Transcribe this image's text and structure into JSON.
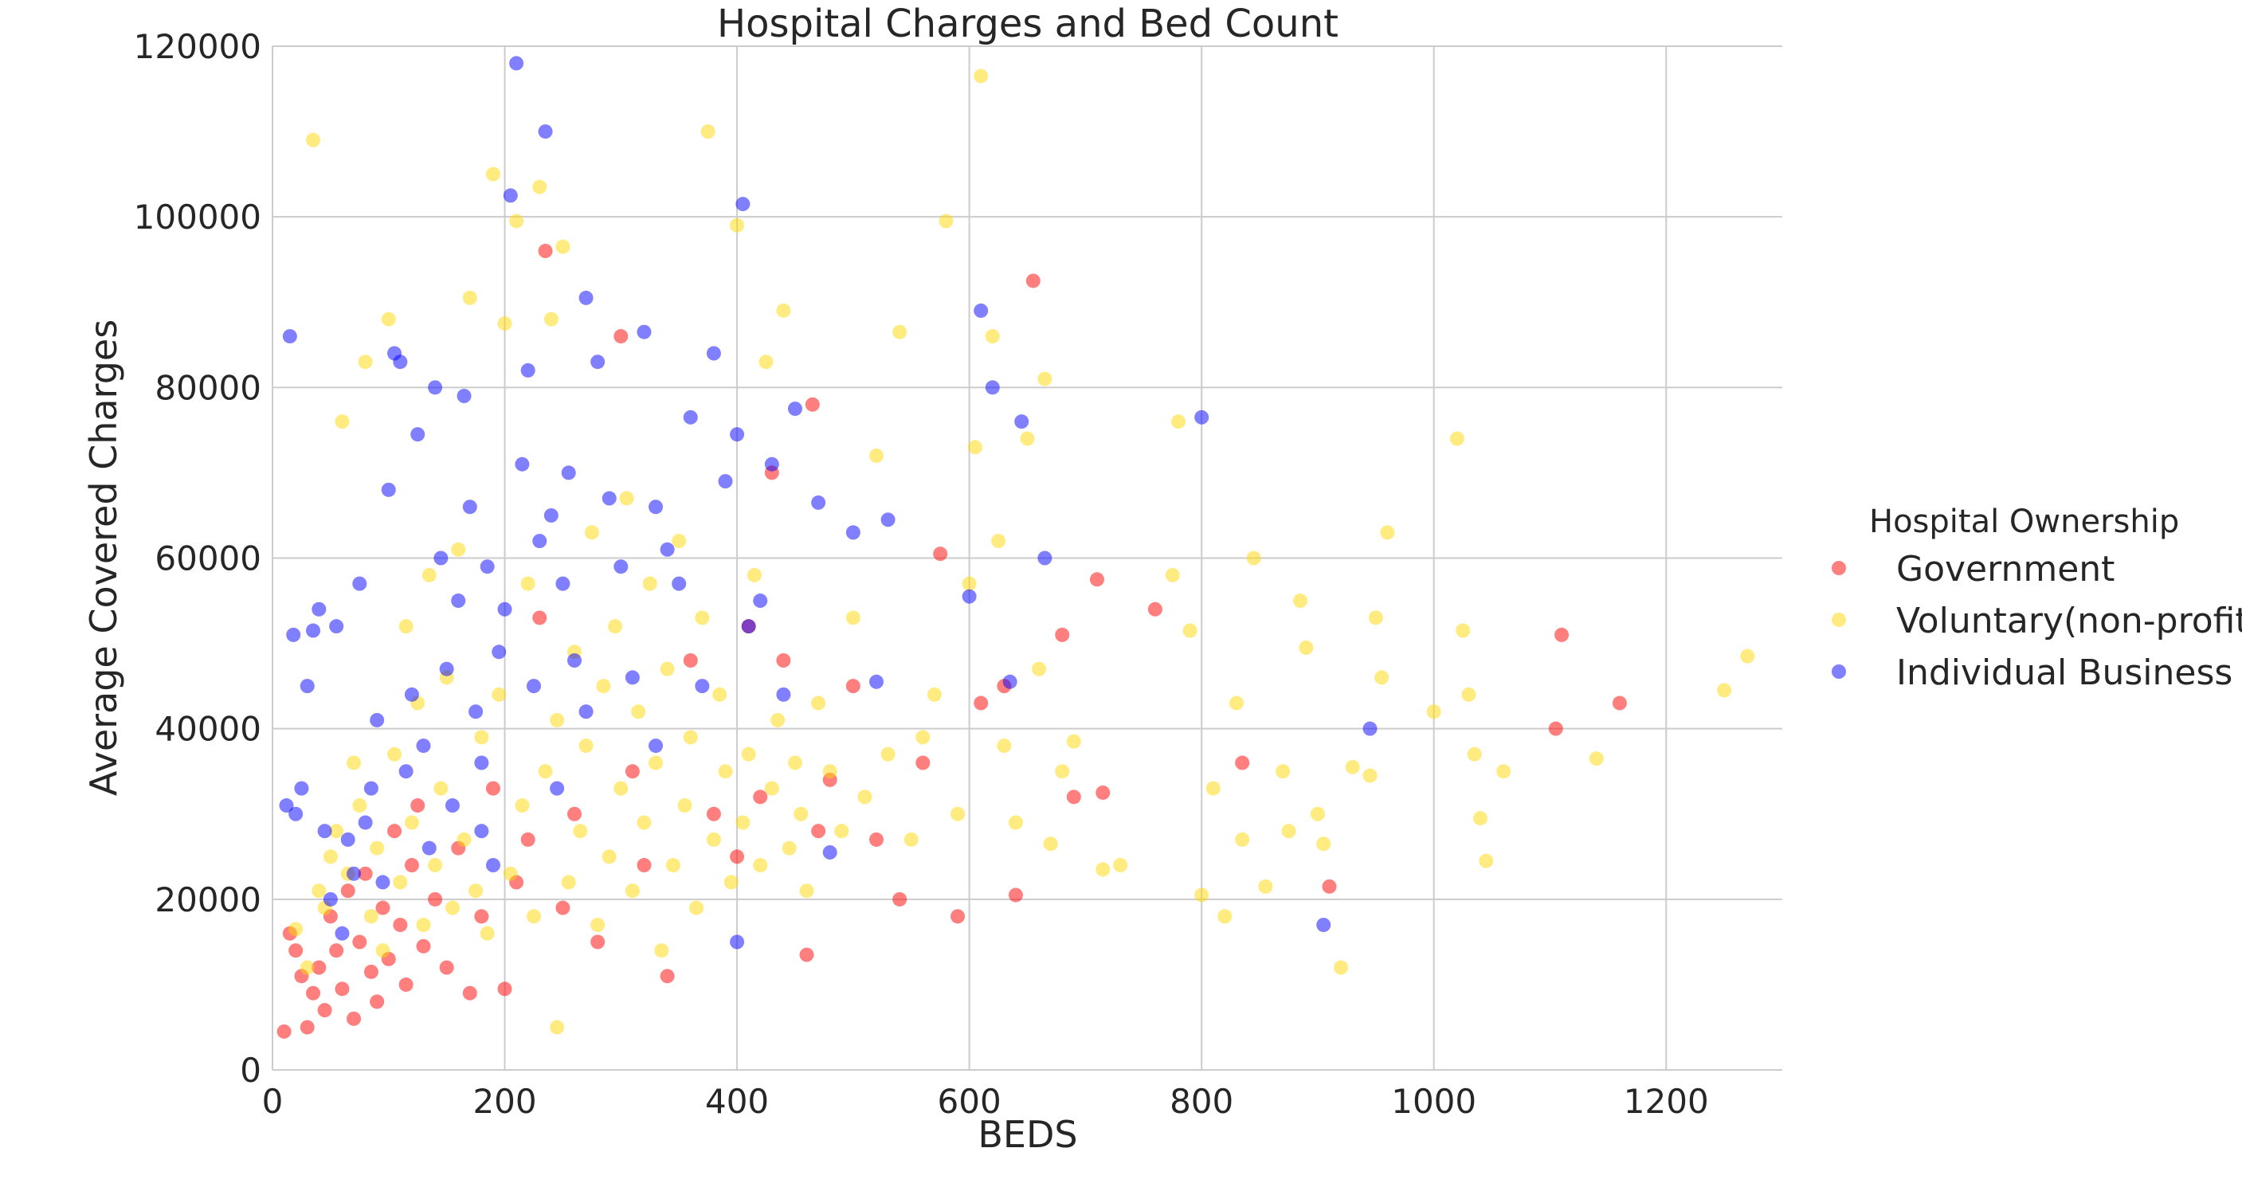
{
  "chart_data": {
    "type": "scatter",
    "title": "Hospital Charges and Bed Count",
    "xlabel": "BEDS",
    "ylabel": "Average Covered Charges",
    "xlim": [
      0,
      1300
    ],
    "ylim": [
      0,
      120000
    ],
    "xticks": [
      0,
      200,
      400,
      600,
      800,
      1000,
      1200
    ],
    "yticks": [
      0,
      20000,
      40000,
      60000,
      80000,
      100000,
      120000
    ],
    "xtick_labels": [
      "0",
      "200",
      "400",
      "600",
      "800",
      "1000",
      "1200"
    ],
    "ytick_labels": [
      "0",
      "20000",
      "40000",
      "60000",
      "80000",
      "100000",
      "120000"
    ],
    "grid": true,
    "legend": {
      "title": "Hospital Ownership",
      "placement": "right"
    },
    "series": [
      {
        "name": "Government",
        "color": "#ff0000",
        "points": [
          [
            10,
            4500
          ],
          [
            15,
            16000
          ],
          [
            20,
            14000
          ],
          [
            25,
            11000
          ],
          [
            30,
            5000
          ],
          [
            35,
            9000
          ],
          [
            40,
            12000
          ],
          [
            45,
            7000
          ],
          [
            50,
            18000
          ],
          [
            55,
            14000
          ],
          [
            60,
            9500
          ],
          [
            65,
            21000
          ],
          [
            70,
            6000
          ],
          [
            75,
            15000
          ],
          [
            80,
            23000
          ],
          [
            85,
            11500
          ],
          [
            90,
            8000
          ],
          [
            95,
            19000
          ],
          [
            100,
            13000
          ],
          [
            105,
            28000
          ],
          [
            110,
            17000
          ],
          [
            115,
            10000
          ],
          [
            120,
            24000
          ],
          [
            125,
            31000
          ],
          [
            130,
            14500
          ],
          [
            140,
            20000
          ],
          [
            150,
            12000
          ],
          [
            160,
            26000
          ],
          [
            170,
            9000
          ],
          [
            180,
            18000
          ],
          [
            190,
            33000
          ],
          [
            200,
            9500
          ],
          [
            210,
            22000
          ],
          [
            220,
            27000
          ],
          [
            230,
            53000
          ],
          [
            235,
            96000
          ],
          [
            250,
            19000
          ],
          [
            260,
            30000
          ],
          [
            280,
            15000
          ],
          [
            300,
            86000
          ],
          [
            310,
            35000
          ],
          [
            320,
            24000
          ],
          [
            340,
            11000
          ],
          [
            360,
            48000
          ],
          [
            380,
            30000
          ],
          [
            400,
            25000
          ],
          [
            410,
            52000
          ],
          [
            420,
            32000
          ],
          [
            430,
            70000
          ],
          [
            440,
            48000
          ],
          [
            460,
            13500
          ],
          [
            465,
            78000
          ],
          [
            470,
            28000
          ],
          [
            480,
            34000
          ],
          [
            500,
            45000
          ],
          [
            520,
            27000
          ],
          [
            540,
            20000
          ],
          [
            560,
            36000
          ],
          [
            575,
            60500
          ],
          [
            590,
            18000
          ],
          [
            610,
            43000
          ],
          [
            630,
            45000
          ],
          [
            640,
            20500
          ],
          [
            655,
            92500
          ],
          [
            680,
            51000
          ],
          [
            690,
            32000
          ],
          [
            710,
            57500
          ],
          [
            715,
            32500
          ],
          [
            760,
            54000
          ],
          [
            835,
            36000
          ],
          [
            910,
            21500
          ],
          [
            1105,
            40000
          ],
          [
            1110,
            51000
          ],
          [
            1160,
            43000
          ]
        ]
      },
      {
        "name": "Voluntary(non-profit)",
        "color": "#ffd700",
        "points": [
          [
            20,
            16500
          ],
          [
            30,
            12000
          ],
          [
            35,
            109000
          ],
          [
            40,
            21000
          ],
          [
            45,
            19000
          ],
          [
            50,
            25000
          ],
          [
            55,
            28000
          ],
          [
            60,
            76000
          ],
          [
            65,
            23000
          ],
          [
            70,
            36000
          ],
          [
            75,
            31000
          ],
          [
            80,
            83000
          ],
          [
            85,
            18000
          ],
          [
            90,
            26000
          ],
          [
            95,
            14000
          ],
          [
            100,
            88000
          ],
          [
            105,
            37000
          ],
          [
            110,
            22000
          ],
          [
            115,
            52000
          ],
          [
            120,
            29000
          ],
          [
            125,
            43000
          ],
          [
            130,
            17000
          ],
          [
            135,
            58000
          ],
          [
            140,
            24000
          ],
          [
            145,
            33000
          ],
          [
            150,
            46000
          ],
          [
            155,
            19000
          ],
          [
            160,
            61000
          ],
          [
            165,
            27000
          ],
          [
            170,
            90500
          ],
          [
            175,
            21000
          ],
          [
            180,
            39000
          ],
          [
            185,
            16000
          ],
          [
            190,
            105000
          ],
          [
            195,
            44000
          ],
          [
            200,
            87500
          ],
          [
            205,
            23000
          ],
          [
            210,
            99500
          ],
          [
            215,
            31000
          ],
          [
            220,
            57000
          ],
          [
            225,
            18000
          ],
          [
            230,
            103500
          ],
          [
            235,
            35000
          ],
          [
            240,
            88000
          ],
          [
            245,
            41000
          ],
          [
            250,
            96500
          ],
          [
            255,
            22000
          ],
          [
            260,
            49000
          ],
          [
            265,
            28000
          ],
          [
            270,
            38000
          ],
          [
            275,
            63000
          ],
          [
            280,
            17000
          ],
          [
            285,
            45000
          ],
          [
            290,
            25000
          ],
          [
            295,
            52000
          ],
          [
            300,
            33000
          ],
          [
            305,
            67000
          ],
          [
            310,
            21000
          ],
          [
            315,
            42000
          ],
          [
            320,
            29000
          ],
          [
            325,
            57000
          ],
          [
            330,
            36000
          ],
          [
            335,
            14000
          ],
          [
            340,
            47000
          ],
          [
            345,
            24000
          ],
          [
            350,
            62000
          ],
          [
            355,
            31000
          ],
          [
            360,
            39000
          ],
          [
            365,
            19000
          ],
          [
            370,
            53000
          ],
          [
            375,
            110000
          ],
          [
            380,
            27000
          ],
          [
            385,
            44000
          ],
          [
            390,
            35000
          ],
          [
            395,
            22000
          ],
          [
            400,
            99000
          ],
          [
            405,
            29000
          ],
          [
            410,
            37000
          ],
          [
            415,
            58000
          ],
          [
            420,
            24000
          ],
          [
            425,
            83000
          ],
          [
            430,
            33000
          ],
          [
            435,
            41000
          ],
          [
            440,
            89000
          ],
          [
            445,
            26000
          ],
          [
            450,
            36000
          ],
          [
            455,
            30000
          ],
          [
            460,
            21000
          ],
          [
            470,
            43000
          ],
          [
            480,
            35000
          ],
          [
            490,
            28000
          ],
          [
            500,
            53000
          ],
          [
            510,
            32000
          ],
          [
            520,
            72000
          ],
          [
            530,
            37000
          ],
          [
            540,
            86500
          ],
          [
            550,
            27000
          ],
          [
            560,
            39000
          ],
          [
            570,
            44000
          ],
          [
            580,
            99500
          ],
          [
            590,
            30000
          ],
          [
            600,
            57000
          ],
          [
            605,
            73000
          ],
          [
            610,
            116500
          ],
          [
            620,
            86000
          ],
          [
            625,
            62000
          ],
          [
            630,
            38000
          ],
          [
            640,
            29000
          ],
          [
            650,
            74000
          ],
          [
            660,
            47000
          ],
          [
            665,
            81000
          ],
          [
            670,
            26500
          ],
          [
            680,
            35000
          ],
          [
            690,
            38500
          ],
          [
            715,
            23500
          ],
          [
            730,
            24000
          ],
          [
            775,
            58000
          ],
          [
            780,
            76000
          ],
          [
            790,
            51500
          ],
          [
            800,
            20500
          ],
          [
            810,
            33000
          ],
          [
            820,
            18000
          ],
          [
            830,
            43000
          ],
          [
            835,
            27000
          ],
          [
            845,
            60000
          ],
          [
            855,
            21500
          ],
          [
            870,
            35000
          ],
          [
            875,
            28000
          ],
          [
            885,
            55000
          ],
          [
            890,
            49500
          ],
          [
            900,
            30000
          ],
          [
            905,
            26500
          ],
          [
            920,
            12000
          ],
          [
            930,
            35500
          ],
          [
            945,
            34500
          ],
          [
            950,
            53000
          ],
          [
            955,
            46000
          ],
          [
            960,
            63000
          ],
          [
            1000,
            42000
          ],
          [
            1020,
            74000
          ],
          [
            1025,
            51500
          ],
          [
            1030,
            44000
          ],
          [
            1035,
            37000
          ],
          [
            1040,
            29500
          ],
          [
            1045,
            24500
          ],
          [
            1060,
            35000
          ],
          [
            1140,
            36500
          ],
          [
            1250,
            44500
          ],
          [
            1270,
            48500
          ],
          [
            245,
            5000
          ]
        ]
      },
      {
        "name": "Individual Business",
        "color": "#0000ff",
        "points": [
          [
            12,
            31000
          ],
          [
            15,
            86000
          ],
          [
            18,
            51000
          ],
          [
            20,
            30000
          ],
          [
            25,
            33000
          ],
          [
            30,
            45000
          ],
          [
            35,
            51500
          ],
          [
            40,
            54000
          ],
          [
            45,
            28000
          ],
          [
            50,
            20000
          ],
          [
            55,
            52000
          ],
          [
            60,
            16000
          ],
          [
            65,
            27000
          ],
          [
            70,
            23000
          ],
          [
            75,
            57000
          ],
          [
            80,
            29000
          ],
          [
            85,
            33000
          ],
          [
            90,
            41000
          ],
          [
            95,
            22000
          ],
          [
            100,
            68000
          ],
          [
            105,
            84000
          ],
          [
            110,
            83000
          ],
          [
            115,
            35000
          ],
          [
            120,
            44000
          ],
          [
            125,
            74500
          ],
          [
            130,
            38000
          ],
          [
            135,
            26000
          ],
          [
            140,
            80000
          ],
          [
            145,
            60000
          ],
          [
            150,
            47000
          ],
          [
            155,
            31000
          ],
          [
            160,
            55000
          ],
          [
            165,
            79000
          ],
          [
            170,
            66000
          ],
          [
            175,
            42000
          ],
          [
            180,
            36000
          ],
          [
            185,
            59000
          ],
          [
            190,
            24000
          ],
          [
            195,
            49000
          ],
          [
            200,
            54000
          ],
          [
            205,
            102500
          ],
          [
            210,
            118000
          ],
          [
            215,
            71000
          ],
          [
            220,
            82000
          ],
          [
            225,
            45000
          ],
          [
            230,
            62000
          ],
          [
            235,
            110000
          ],
          [
            240,
            65000
          ],
          [
            245,
            33000
          ],
          [
            250,
            57000
          ],
          [
            255,
            70000
          ],
          [
            260,
            48000
          ],
          [
            270,
            90500
          ],
          [
            280,
            83000
          ],
          [
            290,
            67000
          ],
          [
            300,
            59000
          ],
          [
            310,
            46000
          ],
          [
            320,
            86500
          ],
          [
            330,
            66000
          ],
          [
            340,
            61000
          ],
          [
            350,
            57000
          ],
          [
            360,
            76500
          ],
          [
            370,
            45000
          ],
          [
            380,
            84000
          ],
          [
            390,
            69000
          ],
          [
            400,
            74500
          ],
          [
            405,
            101500
          ],
          [
            410,
            52000
          ],
          [
            420,
            55000
          ],
          [
            430,
            71000
          ],
          [
            440,
            44000
          ],
          [
            450,
            77500
          ],
          [
            470,
            66500
          ],
          [
            480,
            25500
          ],
          [
            500,
            63000
          ],
          [
            520,
            45500
          ],
          [
            530,
            64500
          ],
          [
            600,
            55500
          ],
          [
            610,
            89000
          ],
          [
            620,
            80000
          ],
          [
            635,
            45500
          ],
          [
            645,
            76000
          ],
          [
            665,
            60000
          ],
          [
            800,
            76500
          ],
          [
            945,
            40000
          ],
          [
            905,
            17000
          ],
          [
            400,
            15000
          ],
          [
            330,
            38000
          ],
          [
            270,
            42000
          ],
          [
            180,
            28000
          ]
        ]
      }
    ]
  }
}
